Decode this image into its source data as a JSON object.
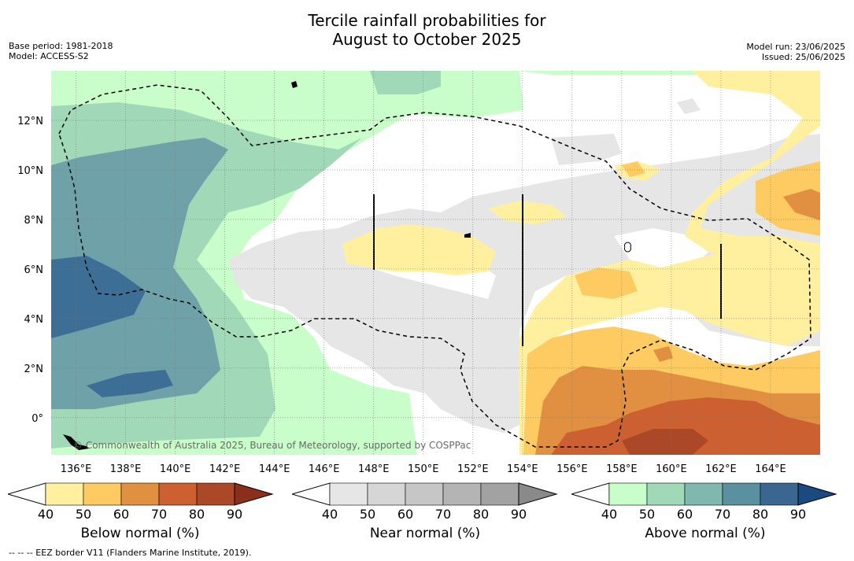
{
  "title_line1": "Tercile rainfall probabilities for",
  "title_line2": "August to October 2025",
  "meta_left": [
    "Base period: 1981-2018",
    "Model: ACCESS-S2"
  ],
  "meta_right": [
    "Model run: 23/06/2025",
    "Issued: 25/06/2025"
  ],
  "credit": "© Commonwealth of Australia 2025, Bureau of Meteorology, supported by COSPPac",
  "footer": "--  --  -- EEZ border V11 (Flanders Marine Institute, 2019).",
  "map_extent": {
    "lon_min": 135,
    "lon_max": 166,
    "lat_min": -1.5,
    "lat_max": 14
  },
  "lon_ticks": [
    "136°E",
    "138°E",
    "140°E",
    "142°E",
    "144°E",
    "146°E",
    "148°E",
    "150°E",
    "152°E",
    "154°E",
    "156°E",
    "158°E",
    "160°E",
    "162°E",
    "164°E"
  ],
  "lat_ticks": [
    "12°N",
    "10°N",
    "8°N",
    "6°N",
    "4°N",
    "2°N",
    "0°"
  ],
  "colorbars": [
    {
      "label": "Below normal (%)",
      "ticks": [
        "40",
        "50",
        "60",
        "70",
        "80",
        "90"
      ],
      "colors": [
        "#ffffff",
        "#fff0a0",
        "#fdcb62",
        "#e09040",
        "#cc6030",
        "#ab4828",
        "#8c2e1c"
      ]
    },
    {
      "label": "Near normal (%)",
      "ticks": [
        "40",
        "50",
        "60",
        "70",
        "80",
        "90"
      ],
      "colors": [
        "#ffffff",
        "#e6e6e6",
        "#d6d6d6",
        "#c6c6c6",
        "#b4b4b4",
        "#a2a2a2",
        "#8a8a8a"
      ]
    },
    {
      "label": "Above normal (%)",
      "ticks": [
        "40",
        "50",
        "60",
        "70",
        "80",
        "90"
      ],
      "colors": [
        "#ffffff",
        "#c9fdc9",
        "#a0d8b8",
        "#80b8b0",
        "#5a90a0",
        "#3a6690",
        "#1a4a80"
      ]
    }
  ]
}
